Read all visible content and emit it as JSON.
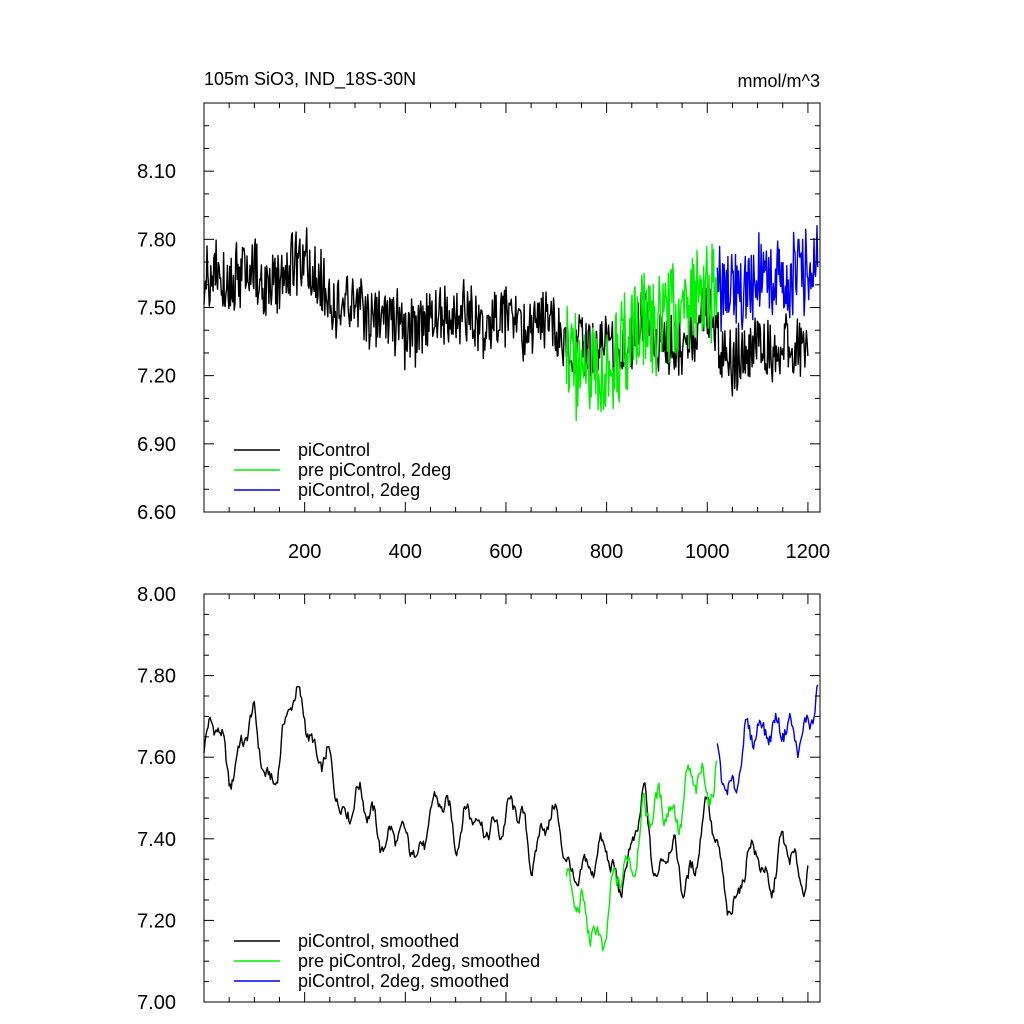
{
  "chart_data": [
    {
      "type": "line",
      "title": "105m SiO3, IND_18S-30N",
      "units": "mmol/m^3",
      "xlim": [
        0,
        1224
      ],
      "ylim": [
        6.6,
        8.4
      ],
      "x_ticks": [
        200,
        400,
        600,
        800,
        1000,
        1200
      ],
      "x_tick_labels": [
        "200",
        "400",
        "600",
        "800",
        "1000",
        "1200"
      ],
      "y_ticks": [
        6.6,
        6.9,
        7.2,
        7.5,
        7.8,
        8.1
      ],
      "y_tick_labels": [
        "6.60",
        "6.90",
        "7.20",
        "7.50",
        "7.80",
        "8.10"
      ],
      "grid": false,
      "legend_position": "bottom-left",
      "series": [
        {
          "name": "piControl",
          "color": "#000000",
          "x": [
            0,
            25,
            50,
            75,
            100,
            125,
            150,
            175,
            200,
            225,
            250,
            275,
            300,
            325,
            350,
            375,
            400,
            425,
            450,
            475,
            500,
            525,
            550,
            575,
            600,
            625,
            650,
            675,
            700,
            725,
            750,
            775,
            800,
            825,
            850,
            875,
            900,
            925,
            950,
            975,
            1000,
            1025,
            1050,
            1075,
            1100,
            1125,
            1150,
            1175,
            1200
          ],
          "y": [
            7.62,
            7.68,
            7.6,
            7.65,
            7.66,
            7.58,
            7.62,
            7.7,
            7.72,
            7.62,
            7.55,
            7.5,
            7.52,
            7.45,
            7.42,
            7.44,
            7.38,
            7.4,
            7.48,
            7.46,
            7.43,
            7.5,
            7.4,
            7.45,
            7.48,
            7.44,
            7.38,
            7.46,
            7.42,
            7.33,
            7.35,
            7.3,
            7.4,
            7.3,
            7.34,
            7.5,
            7.33,
            7.36,
            7.3,
            7.37,
            7.46,
            7.34,
            7.25,
            7.3,
            7.38,
            7.3,
            7.36,
            7.33,
            7.34
          ],
          "amp": 0.13
        },
        {
          "name": "pre piControl, 2deg",
          "color": "#00ee00",
          "x": [
            720,
            745,
            770,
            795,
            820,
            845,
            870,
            895,
            920,
            945,
            970,
            995,
            1020
          ],
          "y": [
            7.28,
            7.2,
            7.24,
            7.18,
            7.28,
            7.35,
            7.45,
            7.4,
            7.5,
            7.46,
            7.5,
            7.55,
            7.56
          ],
          "amp": 0.2
        },
        {
          "name": "piControl, 2deg",
          "color": "#0000ee",
          "x": [
            1020,
            1045,
            1070,
            1095,
            1120,
            1145,
            1170,
            1195,
            1220
          ],
          "y": [
            7.6,
            7.52,
            7.58,
            7.62,
            7.66,
            7.6,
            7.62,
            7.68,
            7.72
          ],
          "amp": 0.17
        }
      ]
    },
    {
      "type": "line",
      "xlim": [
        0,
        1224
      ],
      "ylim": [
        7.0,
        8.0
      ],
      "x_ticks": [
        200,
        400,
        600,
        800,
        1000,
        1200
      ],
      "y_ticks": [
        7.0,
        7.2,
        7.4,
        7.6,
        7.8,
        8.0
      ],
      "y_tick_labels": [
        "7.00",
        "7.20",
        "7.40",
        "7.60",
        "7.80",
        "8.00"
      ],
      "grid": false,
      "legend_position": "bottom-left",
      "series": [
        {
          "name": "piControl, smoothed",
          "color": "#000000",
          "x": [
            0,
            25,
            50,
            75,
            100,
            125,
            150,
            175,
            200,
            225,
            250,
            275,
            300,
            325,
            350,
            375,
            400,
            425,
            450,
            475,
            500,
            525,
            550,
            575,
            600,
            625,
            650,
            675,
            700,
            725,
            750,
            775,
            800,
            825,
            850,
            875,
            900,
            925,
            950,
            975,
            1000,
            1025,
            1050,
            1075,
            1100,
            1125,
            1150,
            1175,
            1200
          ],
          "y": [
            7.62,
            7.66,
            7.58,
            7.64,
            7.66,
            7.56,
            7.6,
            7.72,
            7.74,
            7.6,
            7.55,
            7.48,
            7.52,
            7.44,
            7.42,
            7.43,
            7.36,
            7.38,
            7.48,
            7.46,
            7.42,
            7.5,
            7.38,
            7.44,
            7.48,
            7.44,
            7.36,
            7.46,
            7.42,
            7.33,
            7.34,
            7.3,
            7.4,
            7.3,
            7.33,
            7.52,
            7.32,
            7.36,
            7.3,
            7.36,
            7.46,
            7.34,
            7.24,
            7.3,
            7.38,
            7.3,
            7.36,
            7.33,
            7.34
          ],
          "amp": 0.06
        },
        {
          "name": "pre piControl, 2deg, smoothed",
          "color": "#00ee00",
          "x": [
            720,
            745,
            770,
            795,
            820,
            845,
            870,
            895,
            920,
            945,
            970,
            995,
            1020
          ],
          "y": [
            7.3,
            7.18,
            7.22,
            7.16,
            7.26,
            7.36,
            7.46,
            7.42,
            7.52,
            7.47,
            7.5,
            7.56,
            7.58
          ],
          "amp": 0.08
        },
        {
          "name": "piControl, 2deg, smoothed",
          "color": "#0000ee",
          "x": [
            1020,
            1045,
            1070,
            1095,
            1120,
            1145,
            1170,
            1195,
            1220
          ],
          "y": [
            7.6,
            7.54,
            7.6,
            7.64,
            7.72,
            7.66,
            7.62,
            7.7,
            7.76
          ],
          "amp": 0.07
        }
      ]
    }
  ]
}
